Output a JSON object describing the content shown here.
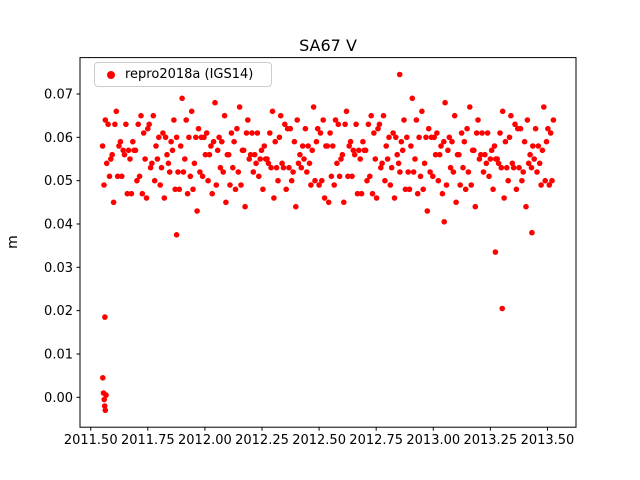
{
  "window": {
    "background": "#ffffff"
  },
  "colors": {
    "marker": "#ff0000",
    "axis": "#000000",
    "legend_border": "#cccccc",
    "background": "#ffffff"
  },
  "chart_data": {
    "type": "scatter",
    "title": "SA67 V",
    "xlabel": "",
    "ylabel": "m",
    "grid": false,
    "legend_position": "upper-left",
    "xlim": [
      2011.453,
      2013.625
    ],
    "ylim": [
      -0.0069,
      0.0784
    ],
    "xticks": [
      2011.5,
      2011.75,
      2012.0,
      2012.25,
      2012.5,
      2012.75,
      2013.0,
      2013.25,
      2013.5
    ],
    "xtick_labels": [
      "2011.50",
      "2011.75",
      "2012.00",
      "2012.25",
      "2012.50",
      "2012.75",
      "2013.00",
      "2013.25",
      "2013.50"
    ],
    "yticks": [
      0.0,
      0.01,
      0.02,
      0.03,
      0.04,
      0.05,
      0.06,
      0.07
    ],
    "ytick_labels": [
      "0.00",
      "0.01",
      "0.02",
      "0.03",
      "0.04",
      "0.05",
      "0.06",
      "0.07"
    ],
    "series": [
      {
        "name": "repro2018a (IGS14)",
        "color": "#ff0000",
        "marker": "dot",
        "marker_radius_px": 2.8,
        "x": [
          2011.552,
          2011.558,
          2011.564,
          2011.57,
          2011.576,
          2011.582,
          2011.588,
          2011.594,
          2011.6,
          2011.606,
          2011.612,
          2011.618,
          2011.624,
          2011.63,
          2011.636,
          2011.642,
          2011.648,
          2011.654,
          2011.66,
          2011.666,
          2011.672,
          2011.678,
          2011.684,
          2011.69,
          2011.696,
          2011.702,
          2011.708,
          2011.714,
          2011.72,
          2011.726,
          2011.732,
          2011.738,
          2011.744,
          2011.75,
          2011.756,
          2011.762,
          2011.768,
          2011.774,
          2011.78,
          2011.786,
          2011.792,
          2011.798,
          2011.804,
          2011.81,
          2011.816,
          2011.822,
          2011.828,
          2011.834,
          2011.84,
          2011.846,
          2011.852,
          2011.858,
          2011.864,
          2011.87,
          2011.876,
          2011.882,
          2011.888,
          2011.894,
          2011.9,
          2011.906,
          2011.912,
          2011.918,
          2011.924,
          2011.93,
          2011.936,
          2011.942,
          2011.948,
          2011.954,
          2011.96,
          2011.966,
          2011.972,
          2011.978,
          2011.984,
          2011.99,
          2011.996,
          2012.002,
          2012.008,
          2012.014,
          2012.02,
          2012.026,
          2012.032,
          2012.038,
          2012.044,
          2012.05,
          2012.056,
          2012.062,
          2012.068,
          2012.074,
          2012.08,
          2012.086,
          2012.092,
          2012.098,
          2012.104,
          2012.11,
          2012.116,
          2012.122,
          2012.128,
          2012.134,
          2012.14,
          2012.146,
          2012.152,
          2012.158,
          2012.164,
          2012.17,
          2012.176,
          2012.182,
          2012.188,
          2012.194,
          2012.2,
          2012.206,
          2012.212,
          2012.218,
          2012.224,
          2012.23,
          2012.236,
          2012.242,
          2012.248,
          2012.254,
          2012.26,
          2012.266,
          2012.272,
          2012.278,
          2012.284,
          2012.29,
          2012.296,
          2012.302,
          2012.308,
          2012.314,
          2012.32,
          2012.326,
          2012.332,
          2012.338,
          2012.344,
          2012.35,
          2012.356,
          2012.362,
          2012.368,
          2012.374,
          2012.38,
          2012.386,
          2012.392,
          2012.398,
          2012.404,
          2012.41,
          2012.416,
          2012.422,
          2012.428,
          2012.434,
          2012.44,
          2012.446,
          2012.452,
          2012.458,
          2012.464,
          2012.47,
          2012.476,
          2012.482,
          2012.488,
          2012.494,
          2012.5,
          2012.506,
          2012.512,
          2012.518,
          2012.524,
          2012.53,
          2012.536,
          2012.542,
          2012.548,
          2012.554,
          2012.56,
          2012.566,
          2012.572,
          2012.578,
          2012.584,
          2012.59,
          2012.596,
          2012.602,
          2012.608,
          2012.614,
          2012.62,
          2012.626,
          2012.632,
          2012.638,
          2012.644,
          2012.65,
          2012.656,
          2012.662,
          2012.668,
          2012.674,
          2012.68,
          2012.686,
          2012.692,
          2012.698,
          2012.704,
          2012.71,
          2012.716,
          2012.722,
          2012.728,
          2012.734,
          2012.74,
          2012.746,
          2012.752,
          2012.758,
          2012.764,
          2012.77,
          2012.776,
          2012.782,
          2012.788,
          2012.794,
          2012.8,
          2012.806,
          2012.812,
          2012.818,
          2012.824,
          2012.83,
          2012.836,
          2012.842,
          2012.848,
          2012.854,
          2012.86,
          2012.866,
          2012.872,
          2012.878,
          2012.884,
          2012.89,
          2012.896,
          2012.902,
          2012.908,
          2012.914,
          2012.92,
          2012.926,
          2012.932,
          2012.938,
          2012.944,
          2012.95,
          2012.956,
          2012.962,
          2012.968,
          2012.974,
          2012.98,
          2012.986,
          2012.992,
          2012.998,
          2013.004,
          2013.01,
          2013.016,
          2013.022,
          2013.028,
          2013.034,
          2013.04,
          2013.046,
          2013.052,
          2013.058,
          2013.064,
          2013.07,
          2013.076,
          2013.082,
          2013.088,
          2013.094,
          2013.1,
          2013.106,
          2013.112,
          2013.118,
          2013.124,
          2013.13,
          2013.136,
          2013.142,
          2013.148,
          2013.154,
          2013.16,
          2013.166,
          2013.172,
          2013.178,
          2013.184,
          2013.19,
          2013.196,
          2013.202,
          2013.208,
          2013.214,
          2013.22,
          2013.226,
          2013.232,
          2013.238,
          2013.244,
          2013.25,
          2013.256,
          2013.262,
          2013.268,
          2013.274,
          2013.28,
          2013.286,
          2013.292,
          2013.298,
          2013.304,
          2013.31,
          2013.316,
          2013.322,
          2013.328,
          2013.334,
          2013.34,
          2013.346,
          2013.352,
          2013.358,
          2013.364,
          2013.37,
          2013.376,
          2013.382,
          2013.388,
          2013.394,
          2013.4,
          2013.406,
          2013.412,
          2013.418,
          2013.424,
          2013.43,
          2013.436,
          2013.442,
          2013.448,
          2013.454,
          2013.46,
          2013.466,
          2013.472,
          2013.478,
          2013.484,
          2013.49,
          2013.496,
          2013.502,
          2013.508,
          2013.514,
          2013.52,
          2013.526,
          2011.553,
          2011.556,
          2011.559,
          2011.561,
          2011.564,
          2011.567,
          2011.562,
          2011.876,
          2012.853,
          2013.048,
          2013.272,
          2013.302,
          2013.432
        ],
        "y": [
          0.058,
          0.049,
          0.064,
          0.054,
          0.063,
          0.051,
          0.055,
          0.056,
          0.045,
          0.063,
          0.066,
          0.051,
          0.058,
          0.059,
          0.051,
          0.057,
          0.056,
          0.063,
          0.047,
          0.057,
          0.055,
          0.047,
          0.059,
          0.057,
          0.057,
          0.05,
          0.063,
          0.051,
          0.065,
          0.047,
          0.061,
          0.055,
          0.046,
          0.062,
          0.063,
          0.053,
          0.054,
          0.065,
          0.05,
          0.058,
          0.055,
          0.06,
          0.049,
          0.053,
          0.061,
          0.046,
          0.06,
          0.056,
          0.054,
          0.052,
          0.059,
          0.057,
          0.064,
          0.048,
          0.06,
          0.052,
          0.048,
          0.058,
          0.069,
          0.052,
          0.055,
          0.064,
          0.047,
          0.06,
          0.051,
          0.066,
          0.048,
          0.054,
          0.06,
          0.043,
          0.062,
          0.052,
          0.06,
          0.051,
          0.06,
          0.056,
          0.061,
          0.05,
          0.056,
          0.058,
          0.047,
          0.059,
          0.068,
          0.049,
          0.057,
          0.06,
          0.053,
          0.059,
          0.052,
          0.065,
          0.045,
          0.056,
          0.056,
          0.049,
          0.061,
          0.053,
          0.059,
          0.048,
          0.062,
          0.052,
          0.067,
          0.049,
          0.057,
          0.057,
          0.044,
          0.061,
          0.064,
          0.055,
          0.056,
          0.061,
          0.052,
          0.056,
          0.054,
          0.061,
          0.051,
          0.055,
          0.057,
          0.048,
          0.058,
          0.055,
          0.055,
          0.054,
          0.061,
          0.053,
          0.066,
          0.046,
          0.059,
          0.053,
          0.05,
          0.06,
          0.065,
          0.054,
          0.053,
          0.063,
          0.048,
          0.062,
          0.053,
          0.062,
          0.05,
          0.052,
          0.059,
          0.044,
          0.064,
          0.054,
          0.056,
          0.053,
          0.058,
          0.055,
          0.062,
          0.052,
          0.058,
          0.054,
          0.049,
          0.057,
          0.067,
          0.05,
          0.059,
          0.062,
          0.049,
          0.061,
          0.05,
          0.064,
          0.046,
          0.058,
          0.058,
          0.045,
          0.061,
          0.051,
          0.058,
          0.049,
          0.064,
          0.054,
          0.063,
          0.051,
          0.055,
          0.056,
          0.045,
          0.063,
          0.066,
          0.051,
          0.058,
          0.059,
          0.051,
          0.057,
          0.056,
          0.063,
          0.047,
          0.057,
          0.055,
          0.047,
          0.059,
          0.057,
          0.057,
          0.05,
          0.063,
          0.051,
          0.065,
          0.047,
          0.061,
          0.055,
          0.046,
          0.062,
          0.063,
          0.053,
          0.054,
          0.065,
          0.05,
          0.058,
          0.055,
          0.06,
          0.049,
          0.053,
          0.061,
          0.046,
          0.06,
          0.056,
          0.054,
          0.052,
          0.059,
          0.057,
          0.064,
          0.048,
          0.06,
          0.052,
          0.048,
          0.058,
          0.069,
          0.052,
          0.055,
          0.064,
          0.047,
          0.06,
          0.051,
          0.066,
          0.048,
          0.054,
          0.06,
          0.043,
          0.062,
          0.052,
          0.06,
          0.051,
          0.06,
          0.056,
          0.061,
          0.05,
          0.056,
          0.058,
          0.047,
          0.059,
          0.068,
          0.049,
          0.057,
          0.06,
          0.053,
          0.059,
          0.052,
          0.065,
          0.045,
          0.056,
          0.056,
          0.049,
          0.061,
          0.053,
          0.059,
          0.048,
          0.062,
          0.052,
          0.067,
          0.049,
          0.057,
          0.057,
          0.044,
          0.061,
          0.064,
          0.055,
          0.056,
          0.061,
          0.052,
          0.056,
          0.054,
          0.061,
          0.051,
          0.055,
          0.057,
          0.048,
          0.058,
          0.055,
          0.055,
          0.054,
          0.061,
          0.053,
          0.066,
          0.046,
          0.059,
          0.053,
          0.05,
          0.06,
          0.065,
          0.054,
          0.053,
          0.063,
          0.048,
          0.062,
          0.053,
          0.062,
          0.05,
          0.052,
          0.059,
          0.044,
          0.064,
          0.054,
          0.056,
          0.053,
          0.058,
          0.055,
          0.062,
          0.052,
          0.058,
          0.054,
          0.049,
          0.057,
          0.067,
          0.05,
          0.059,
          0.062,
          0.049,
          0.061,
          0.05,
          0.064,
          0.0045,
          0.001,
          -0.0005,
          -0.002,
          -0.003,
          0.0005,
          0.0185,
          0.0375,
          0.0745,
          0.0405,
          0.0335,
          0.0205,
          0.038
        ]
      }
    ]
  }
}
